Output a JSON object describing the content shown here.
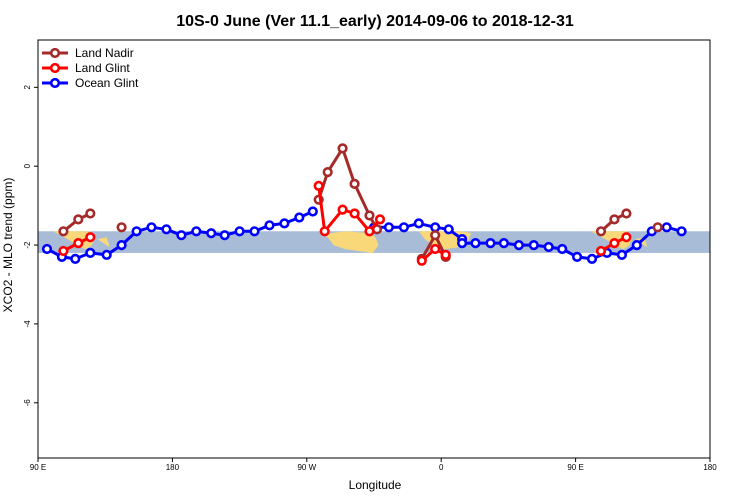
{
  "chart_data": {
    "type": "line",
    "title": "10S-0 June (Ver 11.1_early)   2014-09-06 to 2018-12-31",
    "xlabel": "Longitude",
    "ylabel": "XCO2 - MLO trend (ppm)",
    "xlim": [
      90,
      540
    ],
    "ylim": [
      -7.4,
      3.2
    ],
    "x_ticks": [
      {
        "value": 90,
        "label": "90 E"
      },
      {
        "value": 180,
        "label": "180"
      },
      {
        "value": 270,
        "label": "90 W"
      },
      {
        "value": 360,
        "label": "0"
      },
      {
        "value": 450,
        "label": "90 E"
      },
      {
        "value": 540,
        "label": "180"
      }
    ],
    "y_ticks": [
      {
        "value": 2,
        "label": "2"
      },
      {
        "value": 0,
        "label": "0"
      },
      {
        "value": -2,
        "label": "-2"
      },
      {
        "value": -4,
        "label": "-4"
      },
      {
        "value": -6,
        "label": "-6"
      }
    ],
    "latitude_band": {
      "ymin": -2.2,
      "ymax": -1.65,
      "color": "#a8bcd8",
      "land_color": "#f8d878"
    },
    "legend": {
      "position": "top-left"
    },
    "series": [
      {
        "name": "Land Nadir",
        "color": "#a52a2a",
        "segments": [
          [
            [
              107,
              -1.65
            ],
            [
              117,
              -1.35
            ],
            [
              125,
              -1.2
            ]
          ],
          [
            [
              146,
              -1.55
            ]
          ],
          [
            [
              278,
              -0.85
            ],
            [
              284,
              -0.15
            ],
            [
              294,
              0.45
            ],
            [
              302,
              -0.45
            ],
            [
              312,
              -1.25
            ],
            [
              317,
              -1.6
            ]
          ],
          [
            [
              347,
              -2.35
            ],
            [
              356,
              -1.75
            ],
            [
              363,
              -2.3
            ]
          ],
          [
            [
              467,
              -1.65
            ],
            [
              476,
              -1.35
            ],
            [
              484,
              -1.2
            ]
          ],
          [
            [
              505,
              -1.55
            ]
          ]
        ]
      },
      {
        "name": "Land Glint",
        "color": "#ff0000",
        "segments": [
          [
            [
              107,
              -2.15
            ],
            [
              117,
              -1.95
            ],
            [
              125,
              -1.8
            ]
          ],
          [
            [
              278,
              -0.5
            ],
            [
              282,
              -1.65
            ],
            [
              294,
              -1.1
            ],
            [
              302,
              -1.2
            ],
            [
              312,
              -1.65
            ],
            [
              319,
              -1.35
            ]
          ],
          [
            [
              347,
              -2.4
            ],
            [
              356,
              -2.1
            ],
            [
              363,
              -2.25
            ]
          ],
          [
            [
              467,
              -2.15
            ],
            [
              476,
              -1.95
            ],
            [
              484,
              -1.8
            ]
          ]
        ]
      },
      {
        "name": "Ocean Glint",
        "color": "#0000ff",
        "segments": [
          [
            [
              96,
              -2.1
            ],
            [
              106,
              -2.3
            ],
            [
              115,
              -2.35
            ],
            [
              125,
              -2.2
            ],
            [
              136,
              -2.25
            ],
            [
              146,
              -2.0
            ],
            [
              156,
              -1.65
            ],
            [
              166,
              -1.55
            ],
            [
              176,
              -1.6
            ],
            [
              186,
              -1.75
            ],
            [
              196,
              -1.65
            ],
            [
              206,
              -1.7
            ],
            [
              215,
              -1.75
            ],
            [
              225,
              -1.65
            ],
            [
              235,
              -1.65
            ],
            [
              245,
              -1.5
            ],
            [
              255,
              -1.45
            ],
            [
              265,
              -1.3
            ],
            [
              274,
              -1.15
            ]
          ],
          [
            [
              315,
              -1.55
            ],
            [
              325,
              -1.55
            ],
            [
              335,
              -1.55
            ],
            [
              345,
              -1.45
            ],
            [
              356,
              -1.55
            ],
            [
              365,
              -1.6
            ],
            [
              374,
              -1.85
            ]
          ],
          [
            [
              374,
              -1.95
            ],
            [
              383,
              -1.95
            ],
            [
              393,
              -1.95
            ],
            [
              402,
              -1.95
            ],
            [
              412,
              -2.0
            ],
            [
              422,
              -2.0
            ],
            [
              432,
              -2.05
            ],
            [
              441,
              -2.1
            ],
            [
              451,
              -2.3
            ],
            [
              461,
              -2.35
            ],
            [
              471,
              -2.2
            ],
            [
              481,
              -2.25
            ],
            [
              491,
              -2.0
            ],
            [
              501,
              -1.65
            ],
            [
              511,
              -1.55
            ],
            [
              521,
              -1.65
            ]
          ]
        ]
      }
    ]
  }
}
